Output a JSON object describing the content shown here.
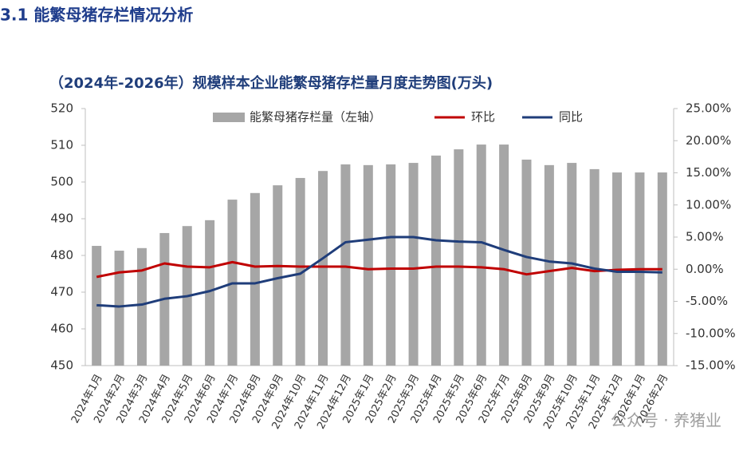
{
  "heading": "3.1  能繁母猪存栏情况分析",
  "chart_data": {
    "type": "bar",
    "title": "（2024年-2026年）规模样本企业能繁母猪存栏量月度走势图(万头)",
    "watermark": "公众号 · 养猪业",
    "categories": [
      "2024年1月",
      "2024年2月",
      "2024年3月",
      "2024年4月",
      "2024年5月",
      "2024年6月",
      "2024年7月",
      "2024年8月",
      "2024年9月",
      "2024年10月",
      "2024年11月",
      "2024年12月",
      "2025年1月",
      "2025年2月",
      "2025年3月",
      "2025年4月",
      "2025年5月",
      "2025年6月",
      "2025年7月",
      "2025年8月",
      "2025年9月",
      "2025年10月",
      "2025年11月",
      "2025年12月",
      "2026年1月",
      "2026年2月"
    ],
    "series": [
      {
        "name": "能繁母猪存栏量（左轴）",
        "type": "bar",
        "color": "#a6a6a6",
        "values": [
          482.6,
          481.3,
          482.0,
          486.1,
          488.0,
          489.6,
          495.2,
          497.0,
          499.1,
          501.1,
          503.0,
          504.8,
          504.6,
          504.8,
          505.2,
          507.2,
          508.9,
          510.2,
          510.2,
          506.1,
          504.6,
          505.2,
          503.5,
          502.6,
          502.6,
          502.6
        ]
      },
      {
        "name": "环比",
        "type": "line",
        "axis": "y2",
        "color": "#c00000",
        "values": [
          -1.2,
          -0.5,
          -0.2,
          0.9,
          0.4,
          0.3,
          1.1,
          0.4,
          0.5,
          0.4,
          0.4,
          0.4,
          0.0,
          0.1,
          0.1,
          0.4,
          0.4,
          0.3,
          0.0,
          -0.8,
          -0.3,
          0.2,
          -0.3,
          -0.1,
          0.0,
          0.0
        ]
      },
      {
        "name": "同比",
        "type": "line",
        "axis": "y2",
        "color": "#1f3d7a",
        "values": [
          -5.6,
          -5.8,
          -5.5,
          -4.6,
          -4.2,
          -3.4,
          -2.2,
          -2.2,
          -1.4,
          -0.7,
          1.7,
          4.2,
          4.6,
          5.0,
          5.0,
          4.5,
          4.3,
          4.2,
          3.0,
          1.9,
          1.2,
          0.9,
          0.1,
          -0.4,
          -0.4,
          -0.5
        ]
      }
    ],
    "ylim": [
      450,
      520
    ],
    "yticks": [
      450,
      460,
      470,
      480,
      490,
      500,
      510,
      520
    ],
    "y2lim": [
      -15,
      25
    ],
    "y2ticks": [
      {
        "value": -15,
        "label": "-15.00%"
      },
      {
        "value": -10,
        "label": "-10.00%"
      },
      {
        "value": -5,
        "label": "-5.00%"
      },
      {
        "value": 0,
        "label": "0.00%"
      },
      {
        "value": 5,
        "label": "5.00%"
      },
      {
        "value": 10,
        "label": "10.00%"
      },
      {
        "value": 15,
        "label": "15.00%"
      },
      {
        "value": 20,
        "label": "20.00%"
      },
      {
        "value": 25,
        "label": "25.00%"
      }
    ],
    "grid": false,
    "legend": "top"
  }
}
